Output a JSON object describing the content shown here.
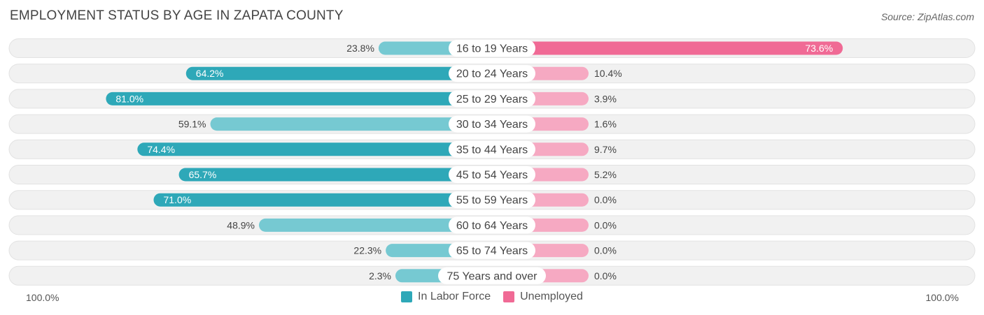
{
  "title": "EMPLOYMENT STATUS BY AGE IN ZAPATA COUNTY",
  "source": "Source: ZipAtlas.com",
  "colors": {
    "labor_strong": "#2ea8b8",
    "labor_light": "#76c9d2",
    "unemployed_strong": "#f06a95",
    "unemployed_light": "#f6a9c2",
    "row_bg": "#f1f1f1"
  },
  "chart_data": {
    "type": "bar",
    "categories": [
      "16 to 19 Years",
      "20 to 24 Years",
      "25 to 29 Years",
      "30 to 34 Years",
      "35 to 44 Years",
      "45 to 54 Years",
      "55 to 59 Years",
      "60 to 64 Years",
      "65 to 74 Years",
      "75 Years and over"
    ],
    "series": [
      {
        "name": "In Labor Force",
        "values": [
          23.8,
          64.2,
          81.0,
          59.1,
          74.4,
          65.7,
          71.0,
          48.9,
          22.3,
          2.3
        ],
        "labels": [
          "23.8%",
          "64.2%",
          "81.0%",
          "59.1%",
          "74.4%",
          "65.7%",
          "71.0%",
          "48.9%",
          "22.3%",
          "2.3%"
        ]
      },
      {
        "name": "Unemployed",
        "values": [
          73.6,
          10.4,
          3.9,
          1.6,
          9.7,
          5.2,
          0.0,
          0.0,
          0.0,
          0.0
        ],
        "labels": [
          "73.6%",
          "10.4%",
          "3.9%",
          "1.6%",
          "9.7%",
          "5.2%",
          "0.0%",
          "0.0%",
          "0.0%",
          "0.0%"
        ]
      }
    ],
    "xlim": [
      0,
      100
    ],
    "axis_left_label": "100.0%",
    "axis_right_label": "100.0%",
    "legend_position": "bottom-center"
  }
}
